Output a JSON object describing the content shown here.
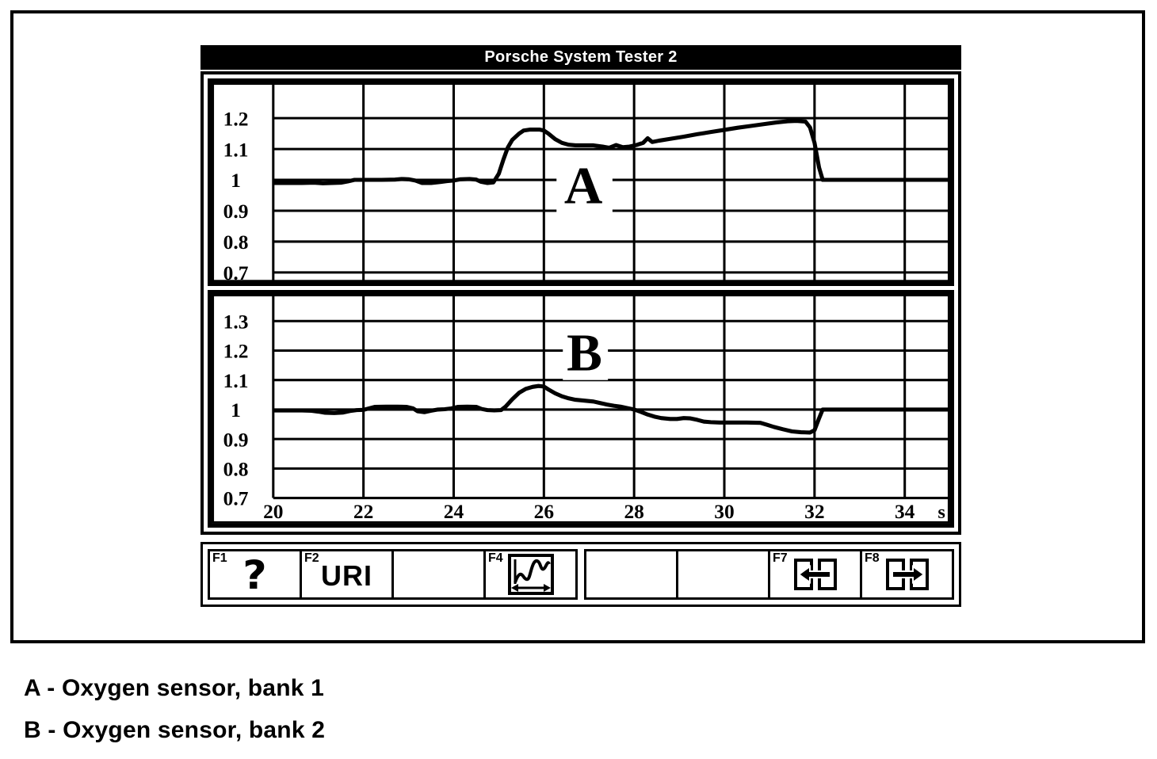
{
  "window": {
    "title": "Porsche System Tester 2"
  },
  "colors": {
    "fg": "#000000",
    "bg": "#ffffff",
    "titlebar_bg": "#000000",
    "titlebar_fg": "#ffffff"
  },
  "legend": [
    "A - Oxygen sensor, bank 1",
    "B - Oxygen sensor, bank 2"
  ],
  "toolbar": {
    "groups": [
      {
        "cells": [
          {
            "fkey": "F1",
            "icon": "help-question-icon"
          },
          {
            "fkey": "F2",
            "text": "URI"
          },
          {},
          {
            "fkey": "F4",
            "icon": "waveform-timebase-icon"
          }
        ]
      },
      {
        "cells": [
          {},
          {},
          {
            "fkey": "F7",
            "icon": "page-left-icon"
          },
          {
            "fkey": "F8",
            "icon": "page-right-icon"
          }
        ]
      }
    ]
  },
  "chart_data": [
    {
      "type": "line",
      "id": "A",
      "title": "A",
      "xlabel": "",
      "ylabel": "",
      "xlim": [
        18.66,
        34.98
      ],
      "ylim": [
        0.672,
        1.312
      ],
      "x_ticks": [
        20,
        22,
        24,
        26,
        28,
        30,
        32,
        34
      ],
      "x_tick_labels": null,
      "x_unit": null,
      "y_ticks": [
        1.2,
        1.1,
        1.0,
        0.9,
        0.8,
        0.7
      ],
      "y_tick_labels": [
        "1.2",
        "1.1",
        "1",
        "0.9",
        "0.8",
        "0.7"
      ],
      "grid": true,
      "legend_position": "none",
      "annotation": {
        "text": "A",
        "x": 26.875,
        "y": 0.985,
        "box": {
          "x0": 26.28,
          "x1": 27.52,
          "y0": 0.893,
          "y1": 1.093
        }
      },
      "series": [
        {
          "name": "Oxygen sensor, bank 1",
          "points": [
            [
              20,
              0.99
            ],
            [
              20.3,
              0.99
            ],
            [
              20.6,
              0.99
            ],
            [
              20.9,
              0.991
            ],
            [
              21.1,
              0.989
            ],
            [
              21.3,
              0.99
            ],
            [
              21.5,
              0.991
            ],
            [
              21.65,
              0.995
            ],
            [
              21.8,
              1.0
            ],
            [
              22.1,
              1.0
            ],
            [
              22.4,
              1.0
            ],
            [
              22.7,
              1.001
            ],
            [
              22.85,
              1.003
            ],
            [
              23.0,
              1.002
            ],
            [
              23.15,
              0.998
            ],
            [
              23.3,
              0.99
            ],
            [
              23.5,
              0.99
            ],
            [
              23.7,
              0.993
            ],
            [
              23.85,
              0.996
            ],
            [
              24.0,
              0.998
            ],
            [
              24.15,
              1.002
            ],
            [
              24.35,
              1.003
            ],
            [
              24.5,
              1.001
            ],
            [
              24.6,
              0.994
            ],
            [
              24.75,
              0.99
            ],
            [
              24.88,
              0.992
            ],
            [
              25.0,
              1.02
            ],
            [
              25.1,
              1.065
            ],
            [
              25.2,
              1.105
            ],
            [
              25.3,
              1.13
            ],
            [
              25.45,
              1.15
            ],
            [
              25.55,
              1.16
            ],
            [
              25.7,
              1.163
            ],
            [
              25.9,
              1.163
            ],
            [
              26.0,
              1.16
            ],
            [
              26.1,
              1.15
            ],
            [
              26.25,
              1.132
            ],
            [
              26.4,
              1.12
            ],
            [
              26.55,
              1.114
            ],
            [
              26.7,
              1.112
            ],
            [
              26.9,
              1.112
            ],
            [
              27.1,
              1.112
            ],
            [
              27.3,
              1.108
            ],
            [
              27.45,
              1.104
            ],
            [
              27.6,
              1.113
            ],
            [
              27.75,
              1.106
            ],
            [
              27.9,
              1.108
            ],
            [
              28.05,
              1.113
            ],
            [
              28.2,
              1.12
            ],
            [
              28.3,
              1.135
            ],
            [
              28.4,
              1.123
            ],
            [
              28.55,
              1.127
            ],
            [
              28.8,
              1.133
            ],
            [
              29.1,
              1.14
            ],
            [
              29.4,
              1.148
            ],
            [
              29.7,
              1.155
            ],
            [
              30.0,
              1.162
            ],
            [
              30.3,
              1.169
            ],
            [
              30.6,
              1.175
            ],
            [
              30.9,
              1.181
            ],
            [
              31.15,
              1.186
            ],
            [
              31.4,
              1.19
            ],
            [
              31.6,
              1.191
            ],
            [
              31.8,
              1.189
            ],
            [
              31.9,
              1.17
            ],
            [
              32.0,
              1.12
            ],
            [
              32.1,
              1.04
            ],
            [
              32.18,
              1.0
            ],
            [
              32.3,
              1.0
            ],
            [
              32.6,
              1.0
            ],
            [
              33.0,
              1.0
            ],
            [
              33.5,
              1.0
            ],
            [
              34.0,
              1.0
            ],
            [
              34.5,
              1.0
            ],
            [
              34.96,
              1.0
            ]
          ]
        }
      ]
    },
    {
      "type": "line",
      "id": "B",
      "title": "B",
      "xlabel": "",
      "ylabel": "",
      "xlim": [
        18.66,
        34.98
      ],
      "ylim": [
        0.617,
        1.388
      ],
      "x_ticks": [
        20,
        22,
        24,
        26,
        28,
        30,
        32,
        34
      ],
      "x_tick_labels": [
        "20",
        "22",
        "24",
        "26",
        "28",
        "30",
        "32",
        "34"
      ],
      "x_unit": "s",
      "y_ticks": [
        1.3,
        1.2,
        1.1,
        1.0,
        0.9,
        0.8,
        0.7
      ],
      "y_tick_labels": [
        "1.3",
        "1.2",
        "1.1",
        "1",
        "0.9",
        "0.8",
        "0.7"
      ],
      "grid": true,
      "legend_position": "none",
      "annotation": {
        "text": "B",
        "x": 26.9,
        "y": 1.195,
        "box": {
          "x0": 26.42,
          "x1": 27.42,
          "y0": 1.1,
          "y1": 1.293
        }
      },
      "series": [
        {
          "name": "Oxygen sensor, bank 2",
          "points": [
            [
              20,
              0.997
            ],
            [
              20.3,
              0.997
            ],
            [
              20.6,
              0.997
            ],
            [
              20.85,
              0.996
            ],
            [
              21.0,
              0.993
            ],
            [
              21.15,
              0.989
            ],
            [
              21.35,
              0.988
            ],
            [
              21.55,
              0.99
            ],
            [
              21.7,
              0.995
            ],
            [
              21.85,
              0.998
            ],
            [
              22.0,
              0.999
            ],
            [
              22.1,
              1.003
            ],
            [
              22.25,
              1.009
            ],
            [
              22.5,
              1.01
            ],
            [
              22.75,
              1.01
            ],
            [
              22.95,
              1.009
            ],
            [
              23.1,
              1.004
            ],
            [
              23.2,
              0.994
            ],
            [
              23.35,
              0.991
            ],
            [
              23.5,
              0.996
            ],
            [
              23.65,
              1.0
            ],
            [
              23.8,
              1.001
            ],
            [
              23.95,
              1.004
            ],
            [
              24.1,
              1.009
            ],
            [
              24.3,
              1.01
            ],
            [
              24.5,
              1.009
            ],
            [
              24.62,
              1.002
            ],
            [
              24.75,
              0.998
            ],
            [
              24.9,
              0.997
            ],
            [
              25.05,
              0.998
            ],
            [
              25.15,
              1.01
            ],
            [
              25.3,
              1.035
            ],
            [
              25.45,
              1.057
            ],
            [
              25.6,
              1.07
            ],
            [
              25.75,
              1.077
            ],
            [
              25.88,
              1.08
            ],
            [
              26.0,
              1.078
            ],
            [
              26.1,
              1.068
            ],
            [
              26.25,
              1.055
            ],
            [
              26.4,
              1.045
            ],
            [
              26.55,
              1.038
            ],
            [
              26.7,
              1.033
            ],
            [
              26.9,
              1.03
            ],
            [
              27.1,
              1.027
            ],
            [
              27.25,
              1.022
            ],
            [
              27.4,
              1.017
            ],
            [
              27.55,
              1.013
            ],
            [
              27.7,
              1.01
            ],
            [
              27.85,
              1.005
            ],
            [
              28.0,
              1.0
            ],
            [
              28.15,
              0.992
            ],
            [
              28.3,
              0.983
            ],
            [
              28.45,
              0.976
            ],
            [
              28.6,
              0.971
            ],
            [
              28.8,
              0.968
            ],
            [
              28.95,
              0.968
            ],
            [
              29.1,
              0.971
            ],
            [
              29.25,
              0.97
            ],
            [
              29.4,
              0.965
            ],
            [
              29.55,
              0.959
            ],
            [
              29.7,
              0.957
            ],
            [
              29.9,
              0.956
            ],
            [
              30.2,
              0.956
            ],
            [
              30.5,
              0.956
            ],
            [
              30.8,
              0.955
            ],
            [
              30.95,
              0.948
            ],
            [
              31.1,
              0.941
            ],
            [
              31.3,
              0.933
            ],
            [
              31.5,
              0.926
            ],
            [
              31.7,
              0.923
            ],
            [
              31.9,
              0.922
            ],
            [
              32.0,
              0.93
            ],
            [
              32.1,
              0.97
            ],
            [
              32.18,
              1.0
            ],
            [
              32.3,
              1.0
            ],
            [
              32.6,
              1.0
            ],
            [
              33.0,
              1.0
            ],
            [
              33.5,
              1.0
            ],
            [
              34.0,
              1.0
            ],
            [
              34.5,
              1.0
            ],
            [
              34.96,
              1.0
            ]
          ]
        }
      ]
    }
  ]
}
